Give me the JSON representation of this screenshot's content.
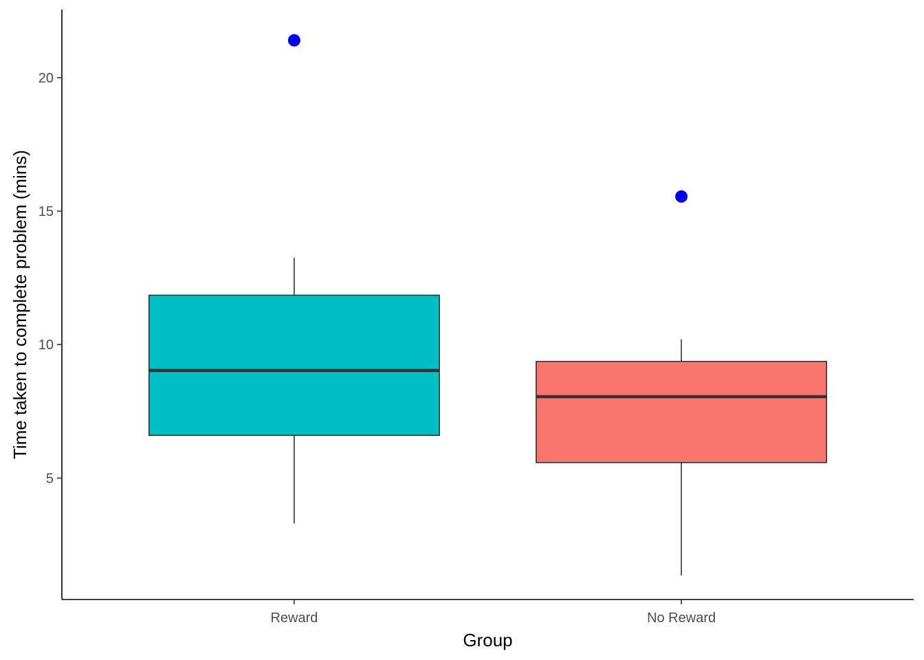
{
  "chart_data": {
    "type": "box",
    "title": "",
    "xlabel": "Group",
    "ylabel": "Time taken to complete problem (mins)",
    "categories": [
      "Reward",
      "No Reward"
    ],
    "ylim": [
      0.45,
      22.55
    ],
    "yticks": [
      5,
      10,
      15,
      20
    ],
    "ytick_labels": [
      "5",
      "10",
      "15",
      "20"
    ],
    "grid": false,
    "legend": "none",
    "boxes": [
      {
        "category": "Reward",
        "whisker_low": 3.3,
        "q1": 6.6,
        "median": 9.03,
        "q3": 11.85,
        "whisker_high": 13.25,
        "outliers": [
          21.4
        ],
        "fill": "#00bfc4"
      },
      {
        "category": "No Reward",
        "whisker_low": 1.35,
        "q1": 5.58,
        "median": 8.05,
        "q3": 9.37,
        "whisker_high": 10.2,
        "outliers": [
          15.55
        ],
        "fill": "#f8766d"
      }
    ],
    "outlier_color": "#0000ee",
    "line_color": "#333333"
  }
}
